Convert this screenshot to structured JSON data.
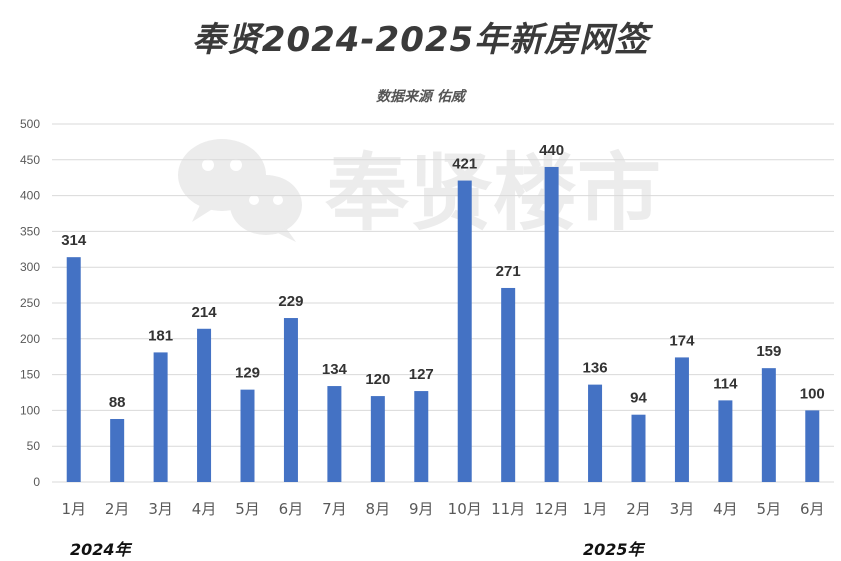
{
  "header": {
    "title": "奉贤2024-2025年新房网签",
    "subtitle": "数据来源 佑威"
  },
  "watermark": {
    "text": "奉贤楼市",
    "icon": "wechat-icon"
  },
  "year_labels": {
    "first": "2024年",
    "second": "2025年"
  },
  "colors": {
    "bar": "#4472C4",
    "grid": "#d9d9d9",
    "axis_text": "#595959",
    "label_text": "#333333",
    "watermark": "#ececec"
  },
  "chart_data": {
    "type": "bar",
    "title": "奉贤2024-2025年新房网签",
    "subtitle": "数据来源 佑威",
    "categories": [
      "1月",
      "2月",
      "3月",
      "4月",
      "5月",
      "6月",
      "7月",
      "8月",
      "9月",
      "10月",
      "11月",
      "12月",
      "1月",
      "2月",
      "3月",
      "4月",
      "5月",
      "6月"
    ],
    "values": [
      314,
      88,
      181,
      214,
      129,
      229,
      134,
      120,
      127,
      421,
      271,
      440,
      136,
      94,
      174,
      114,
      159,
      100
    ],
    "ylim": [
      0,
      500
    ],
    "yticks": [
      0,
      50,
      100,
      150,
      200,
      250,
      300,
      350,
      400,
      450,
      500
    ],
    "grid": true,
    "data_labels": true,
    "groups": [
      "2024年",
      "2025年"
    ]
  }
}
